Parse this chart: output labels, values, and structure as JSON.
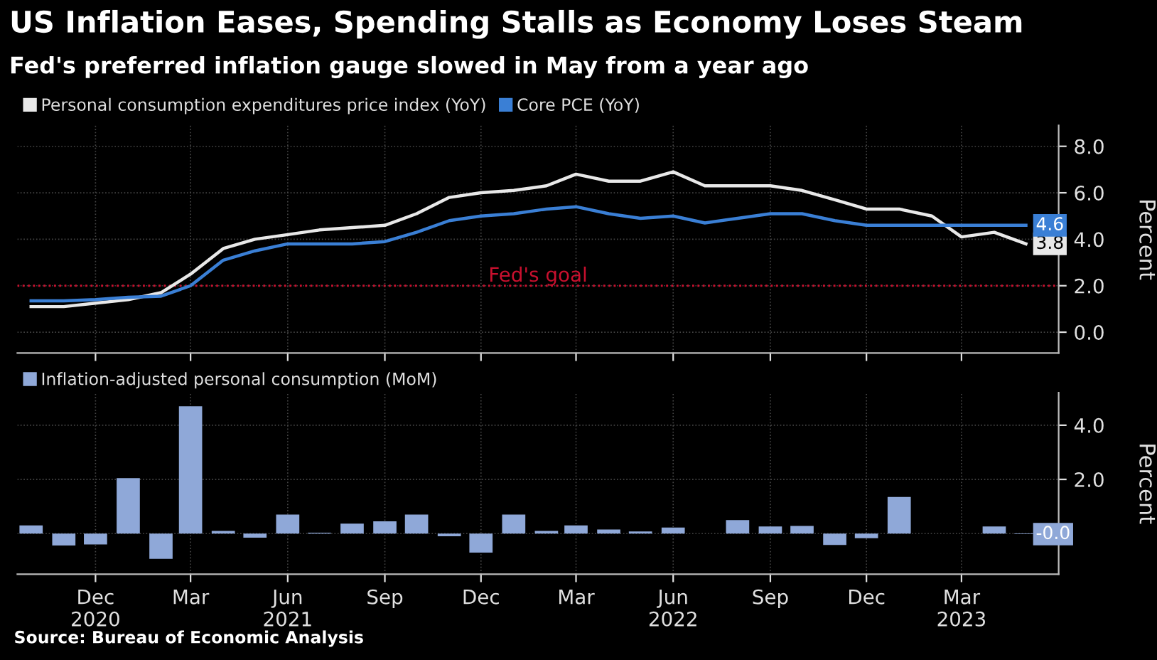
{
  "chart_data": [
    {
      "type": "line",
      "title": "US Inflation Eases, Spending Stalls as Economy Loses Steam",
      "subtitle": "Fed's preferred inflation gauge slowed in May from a year ago",
      "ylabel": "Percent",
      "x": [
        "2020-10",
        "2020-11",
        "2020-12",
        "2021-01",
        "2021-02",
        "2021-03",
        "2021-04",
        "2021-05",
        "2021-06",
        "2021-07",
        "2021-08",
        "2021-09",
        "2021-10",
        "2021-11",
        "2021-12",
        "2022-01",
        "2022-02",
        "2022-03",
        "2022-04",
        "2022-05",
        "2022-06",
        "2022-07",
        "2022-08",
        "2022-09",
        "2022-10",
        "2022-11",
        "2022-12",
        "2023-01",
        "2023-02",
        "2023-03",
        "2023-04",
        "2023-05"
      ],
      "series": [
        {
          "name": "Personal consumption expenditures price index (YoY)",
          "color": "#e8e8e8",
          "values": [
            1.1,
            1.1,
            1.25,
            1.4,
            1.7,
            2.5,
            3.6,
            4.0,
            4.2,
            4.4,
            4.5,
            4.6,
            5.1,
            5.8,
            6.0,
            6.1,
            6.3,
            6.8,
            6.5,
            6.5,
            6.9,
            6.3,
            6.3,
            6.3,
            6.1,
            5.7,
            5.3,
            5.3,
            5.0,
            4.1,
            4.3,
            3.8
          ],
          "value_labels": [
            null,
            null,
            null,
            null,
            null,
            null,
            null,
            null,
            null,
            null,
            null,
            null,
            null,
            null,
            null,
            null,
            null,
            null,
            null,
            null,
            null,
            null,
            null,
            null,
            null,
            null,
            null,
            null,
            null,
            null,
            null,
            "3.8"
          ]
        },
        {
          "name": "Core PCE (YoY)",
          "color": "#3a7fd5",
          "values": [
            1.35,
            1.35,
            1.4,
            1.5,
            1.55,
            2.0,
            3.1,
            3.5,
            3.8,
            3.8,
            3.8,
            3.9,
            4.3,
            4.8,
            5.0,
            5.1,
            5.3,
            5.4,
            5.1,
            4.9,
            5.0,
            4.7,
            4.9,
            5.1,
            5.1,
            4.8,
            4.6,
            4.6,
            4.6,
            4.6,
            4.6,
            4.6
          ],
          "value_labels": [
            null,
            null,
            null,
            null,
            null,
            null,
            null,
            null,
            null,
            null,
            null,
            null,
            null,
            null,
            null,
            null,
            null,
            null,
            null,
            null,
            null,
            null,
            null,
            null,
            null,
            null,
            null,
            null,
            null,
            null,
            null,
            "4.6"
          ]
        }
      ],
      "xlim": [
        "2020-09-18",
        "2023-06-01"
      ],
      "ylim": [
        -0.9,
        8.9
      ],
      "yticks": [
        {
          "value": 0,
          "label": "0.0"
        },
        {
          "value": 2,
          "label": "2.0"
        },
        {
          "value": 4,
          "label": "4.0"
        },
        {
          "value": 6,
          "label": "6.0"
        },
        {
          "value": 8,
          "label": "8.0"
        }
      ],
      "ref_lines": [
        {
          "axis": "y",
          "value": 2,
          "label": "Fed's goal",
          "color": "#c8102e",
          "line_style": "dotted"
        }
      ],
      "tick_labels": "y",
      "grid": true,
      "legend": "top left",
      "line_style": "solid",
      "marker": "none"
    },
    {
      "type": "bar",
      "ylabel": "Percent",
      "x": [
        "2020-10",
        "2020-11",
        "2020-12",
        "2021-01",
        "2021-02",
        "2021-03",
        "2021-04",
        "2021-05",
        "2021-06",
        "2021-07",
        "2021-08",
        "2021-09",
        "2021-10",
        "2021-11",
        "2021-12",
        "2022-01",
        "2022-02",
        "2022-03",
        "2022-04",
        "2022-05",
        "2022-06",
        "2022-07",
        "2022-08",
        "2022-09",
        "2022-10",
        "2022-11",
        "2022-12",
        "2023-01",
        "2023-02",
        "2023-03",
        "2023-04",
        "2023-05"
      ],
      "series": [
        {
          "name": "Inflation-adjusted personal consumption (MoM)",
          "color": "#8fa8d8",
          "values": [
            0.3,
            -0.44,
            -0.4,
            2.05,
            -0.93,
            4.7,
            0.1,
            -0.15,
            0.7,
            0.03,
            0.37,
            0.45,
            0.7,
            -0.1,
            -0.7,
            0.7,
            0.1,
            0.3,
            0.15,
            0.08,
            0.22,
            0.0,
            0.5,
            0.26,
            0.28,
            -0.42,
            -0.17,
            1.35,
            0.0,
            0.0,
            0.26,
            -0.02
          ],
          "value_labels": [
            null,
            null,
            null,
            null,
            null,
            null,
            null,
            null,
            null,
            null,
            null,
            null,
            null,
            null,
            null,
            null,
            null,
            null,
            null,
            null,
            null,
            null,
            null,
            null,
            null,
            null,
            null,
            null,
            null,
            null,
            null,
            "-0.0"
          ]
        }
      ],
      "xlim": [
        "2020-09-18",
        "2023-06-01"
      ],
      "xticks": [
        {
          "value": "2020-12-01",
          "label": "Dec\n2020"
        },
        {
          "value": "2021-03-01",
          "label": "Mar"
        },
        {
          "value": "2021-06-01",
          "label": "Jun\n2021"
        },
        {
          "value": "2021-09-01",
          "label": "Sep"
        },
        {
          "value": "2021-12-01",
          "label": "Dec"
        },
        {
          "value": "2022-03-01",
          "label": "Mar"
        },
        {
          "value": "2022-06-01",
          "label": "Jun\n2022"
        },
        {
          "value": "2022-09-01",
          "label": "Sep"
        },
        {
          "value": "2022-12-01",
          "label": "Dec"
        },
        {
          "value": "2023-03-01",
          "label": "Mar\n2023"
        }
      ],
      "ylim": [
        -1.5,
        5.2
      ],
      "yticks": [
        {
          "value": 0,
          "label": null
        },
        {
          "value": 2,
          "label": "2.0"
        },
        {
          "value": 4,
          "label": "4.0"
        }
      ],
      "annotations": [
        "Source: Bureau of Economic Analysis"
      ],
      "grid": true,
      "legend": "top left"
    }
  ]
}
